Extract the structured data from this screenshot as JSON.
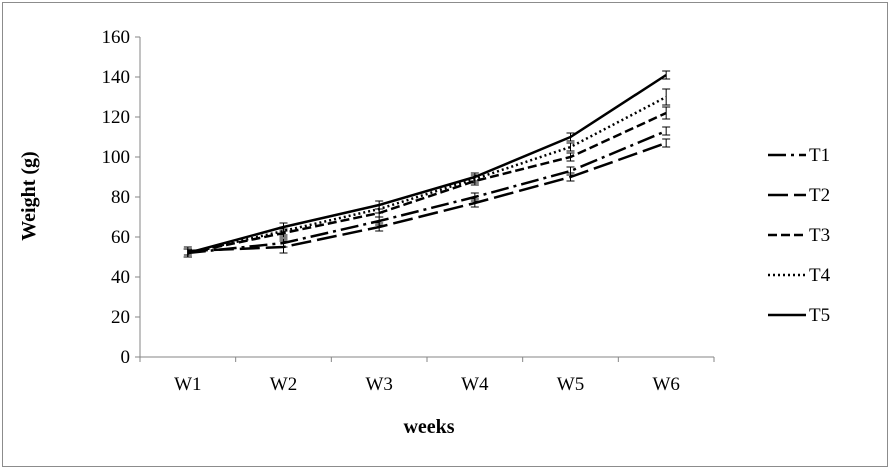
{
  "chart_data": {
    "type": "line",
    "title": "",
    "xlabel": "weeks",
    "ylabel": "Weight (g)",
    "categories": [
      "W1",
      "W2",
      "W3",
      "W4",
      "W5",
      "W6"
    ],
    "ylim": [
      0,
      160
    ],
    "yticks": [
      0,
      20,
      40,
      60,
      80,
      100,
      120,
      140,
      160
    ],
    "grid": false,
    "legend_position": "right",
    "error_bars": true,
    "series": [
      {
        "name": "T1",
        "values": [
          52,
          57,
          68,
          80,
          93,
          113
        ],
        "errors": [
          2,
          2,
          2,
          2,
          2,
          2
        ],
        "dash": "dash-dot"
      },
      {
        "name": "T2",
        "values": [
          53,
          55,
          65,
          77,
          90,
          107
        ],
        "errors": [
          2,
          3,
          2,
          2,
          2,
          2
        ],
        "dash": "long-dash"
      },
      {
        "name": "T3",
        "values": [
          52,
          62,
          72,
          88,
          100,
          122
        ],
        "errors": [
          2,
          2,
          2,
          2,
          2,
          3
        ],
        "dash": "dash"
      },
      {
        "name": "T4",
        "values": [
          52,
          63,
          74,
          89,
          105,
          130
        ],
        "errors": [
          2,
          2,
          2,
          2,
          2,
          4
        ],
        "dash": "dotted"
      },
      {
        "name": "T5",
        "values": [
          52,
          65,
          76,
          90,
          110,
          141
        ],
        "errors": [
          2,
          2,
          2,
          2,
          2,
          2
        ],
        "dash": "solid"
      }
    ]
  }
}
